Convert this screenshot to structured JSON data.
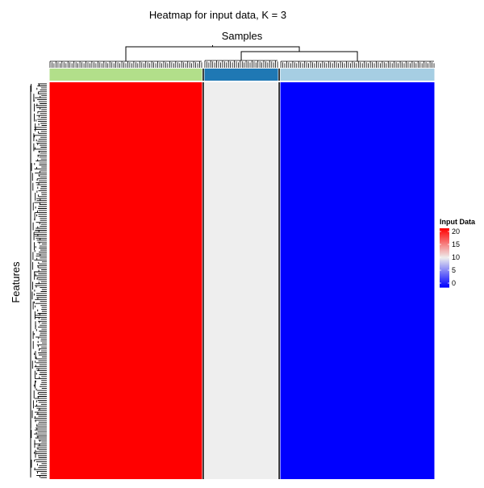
{
  "chart_data": {
    "type": "heatmap",
    "title": "Heatmap for input data, K = 3",
    "xlabel": "Samples",
    "ylabel": "Features",
    "clusters": [
      {
        "id": 1,
        "color": "#B2DF8A",
        "column_share": 0.4,
        "value": 20
      },
      {
        "id": 2,
        "color": "#1F78B4",
        "column_share": 0.196,
        "value": 10
      },
      {
        "id": 3,
        "color": "#A6CEE3",
        "column_share": 0.404,
        "value": 0
      }
    ],
    "color_scale": {
      "low": "#0000FF",
      "mid": "#EEEEEE",
      "high": "#FF0000",
      "min": 0,
      "mid_value": 10,
      "max": 20
    },
    "legend": {
      "title": "Input Data",
      "ticks": [
        0,
        5,
        10,
        15,
        20
      ],
      "placement": "right"
    },
    "n_features": 200
  }
}
